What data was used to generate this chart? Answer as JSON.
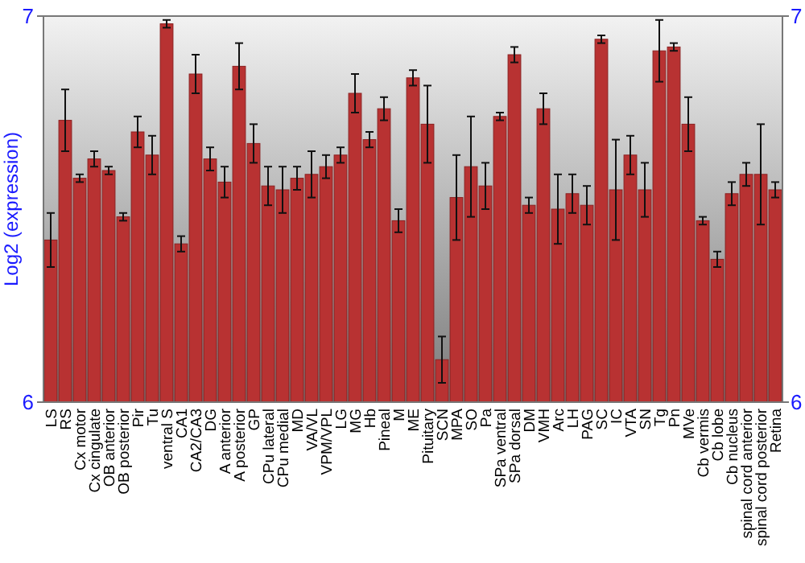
{
  "chart_data": {
    "type": "bar",
    "ylabel": "Log2 (expression)",
    "categories": [
      "LS",
      "RS",
      "Cx motor",
      "Cx cingulate",
      "OB anterior",
      "OB posterior",
      "Pir",
      "Tu",
      "ventral S",
      "CA1",
      "CA2/CA3",
      "DG",
      "A anterior",
      "A posterior",
      "GP",
      "CPu lateral",
      "CPu medial",
      "MD",
      "VA/VL",
      "VPM/VPL",
      "LG",
      "MG",
      "Hb",
      "Pineal",
      "M",
      "ME",
      "Pituitary",
      "SCN",
      "MPA",
      "SO",
      "Pa",
      "SPa ventral",
      "SPa dorsal",
      "DM",
      "VMH",
      "Arc",
      "LH",
      "PAG",
      "SC",
      "IC",
      "VTA",
      "SN",
      "Tg",
      "Pn",
      "MVe",
      "Cb vermis",
      "Cb lobe",
      "Cb nucleus",
      "spinal cord anterior",
      "spinal cord posterior",
      "Retina"
    ],
    "values": [
      6.42,
      6.73,
      6.58,
      6.63,
      6.6,
      6.48,
      6.7,
      6.64,
      6.98,
      6.41,
      6.85,
      6.63,
      6.57,
      6.87,
      6.67,
      6.56,
      6.55,
      6.58,
      6.59,
      6.61,
      6.64,
      6.8,
      6.68,
      6.76,
      6.47,
      6.84,
      6.72,
      6.11,
      6.53,
      6.61,
      6.56,
      6.74,
      6.9,
      6.51,
      6.76,
      6.5,
      6.54,
      6.51,
      6.94,
      6.55,
      6.64,
      6.55,
      6.91,
      6.92,
      6.72,
      6.47,
      6.37,
      6.54,
      6.59,
      6.59,
      6.55
    ],
    "errors": [
      0.07,
      0.08,
      0.01,
      0.02,
      0.01,
      0.01,
      0.04,
      0.05,
      0.01,
      0.02,
      0.05,
      0.03,
      0.04,
      0.06,
      0.05,
      0.05,
      0.06,
      0.03,
      0.06,
      0.03,
      0.02,
      0.05,
      0.02,
      0.03,
      0.03,
      0.02,
      0.1,
      0.06,
      0.11,
      0.13,
      0.06,
      0.01,
      0.02,
      0.02,
      0.04,
      0.09,
      0.05,
      0.05,
      0.01,
      0.13,
      0.05,
      0.07,
      0.08,
      0.01,
      0.07,
      0.01,
      0.02,
      0.03,
      0.03,
      0.13,
      0.02
    ],
    "color": "#b83232",
    "ylim": [
      6,
      7
    ],
    "yticks": [
      6,
      7
    ],
    "y2lim": [
      6,
      7
    ],
    "y2ticks": [
      6,
      7
    ]
  }
}
